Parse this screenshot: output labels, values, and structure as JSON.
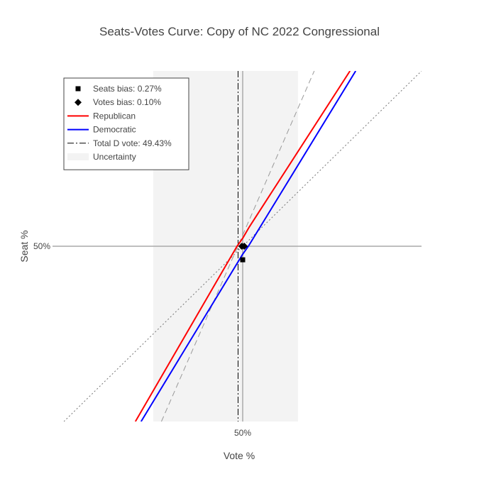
{
  "chart_data": {
    "type": "line",
    "title": "Seats-Votes Curve: Copy of NC 2022 Congressional",
    "xlabel": "Vote %",
    "ylabel": "Seat %",
    "xlim": [
      0.28,
      0.72
    ],
    "ylim": [
      0.28,
      0.72
    ],
    "x_ticks": [
      {
        "value": 0.5,
        "label": "50%"
      }
    ],
    "y_ticks": [
      {
        "value": 0.5,
        "label": "50%"
      }
    ],
    "uncertainty_band": {
      "x_range": [
        0.39,
        0.568
      ],
      "color": "#f3f3f3"
    },
    "reference_lines": [
      {
        "name": "proportionality",
        "style": "dotted",
        "color": "#777777",
        "points": [
          [
            0.28,
            0.28
          ],
          [
            0.72,
            0.72
          ]
        ]
      },
      {
        "name": "responsiveness",
        "style": "dashed",
        "color": "#999999",
        "points": [
          [
            0.4,
            0.28
          ],
          [
            0.588,
            0.72
          ]
        ]
      }
    ],
    "series": [
      {
        "name": "Republican",
        "color": "#ff0000",
        "x": [
          0.368,
          0.493,
          0.5,
          0.508,
          0.632
        ],
        "y": [
          0.28,
          0.5,
          0.51,
          0.524,
          0.72
        ]
      },
      {
        "name": "Democratic",
        "color": "#0000ff",
        "x": [
          0.375,
          0.5,
          0.507,
          0.639
        ],
        "y": [
          0.28,
          0.49,
          0.5,
          0.72
        ]
      }
    ],
    "markers": [
      {
        "name": "Seats bias",
        "symbol": "square",
        "points": [
          [
            0.5,
            0.5
          ],
          [
            0.5,
            0.483
          ]
        ]
      },
      {
        "name": "Votes bias",
        "symbol": "diamond",
        "points": [
          [
            0.499,
            0.5
          ],
          [
            0.502,
            0.5
          ]
        ]
      }
    ],
    "total_d_vote": 0.4943,
    "legend": {
      "placement": "top-left",
      "entries": [
        {
          "label": "Seats bias: 0.27%",
          "symbol": "square"
        },
        {
          "label": "Votes bias: 0.10%",
          "symbol": "diamond"
        },
        {
          "label": "Republican",
          "symbol": "line",
          "color": "#ff0000"
        },
        {
          "label": "Democratic",
          "symbol": "line",
          "color": "#0000ff"
        },
        {
          "label": "Total D vote: 49.43%",
          "symbol": "dashdot"
        },
        {
          "label": "Uncertainty",
          "symbol": "band",
          "color": "#f3f3f3"
        }
      ]
    }
  }
}
